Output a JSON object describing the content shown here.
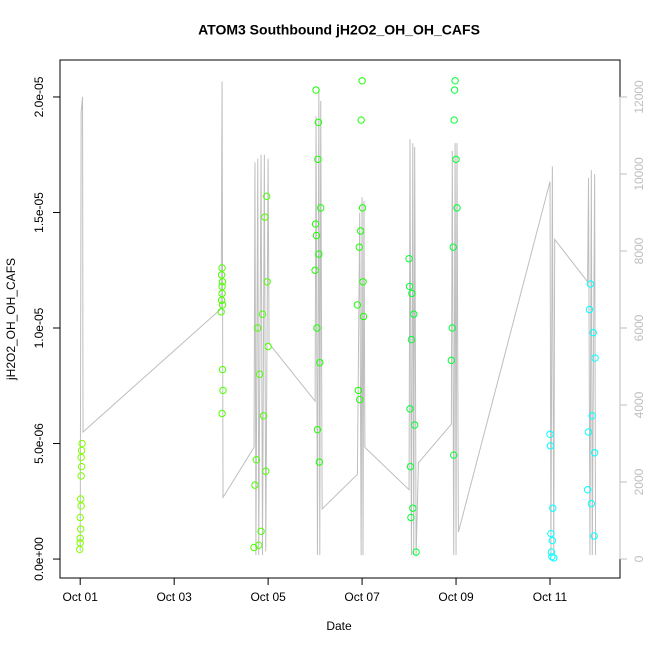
{
  "chart_data": {
    "type": "scatter",
    "title": "ATOM3 Southbound jH2O2_OH_OH_CAFS",
    "x_label": "Date",
    "y_label": "jH2O2_OH_OH_CAFS",
    "xlim": [
      0.57,
      12.49
    ],
    "xticks": [
      {
        "value": 1,
        "label": "Oct 01"
      },
      {
        "value": 3,
        "label": "Oct 03"
      },
      {
        "value": 5,
        "label": "Oct 05"
      },
      {
        "value": 7,
        "label": "Oct 07"
      },
      {
        "value": 9,
        "label": "Oct 09"
      },
      {
        "value": 11,
        "label": "Oct 11"
      }
    ],
    "ylim": [
      -8.2e-07,
      2.16e-05
    ],
    "yticks": [
      {
        "value": 0,
        "label": "0.0e+00"
      },
      {
        "value": 5e-06,
        "label": "5.0e-06"
      },
      {
        "value": 1e-05,
        "label": "1.0e-05"
      },
      {
        "value": 1.5e-05,
        "label": "1.5e-05"
      },
      {
        "value": 2e-05,
        "label": "2.0e-05"
      }
    ],
    "y2lim": [
      -493,
      12960
    ],
    "y2ticks": [
      0,
      2000,
      4000,
      6000,
      8000,
      10000,
      12000
    ],
    "y2_color": "#bebebe",
    "series": [
      {
        "color": "#80ff00",
        "x": [
          0.99,
          1.0,
          1.0,
          1.01,
          1.0,
          1.02,
          1.01,
          1.02,
          1.03,
          1.02,
          1.03,
          1.04
        ],
        "values": [
          4.2e-07,
          7e-07,
          9e-07,
          1.3e-06,
          1.8e-06,
          2.3e-06,
          2.6e-06,
          3.6e-06,
          4e-06,
          4.4e-06,
          4.7e-06,
          5e-06
        ]
      },
      {
        "color": "#4dff00",
        "x": [
          4.0,
          4.01,
          4.02,
          4.02,
          4.03,
          4.01,
          4.02,
          4.03,
          4.04,
          4.02,
          4.03,
          4.7,
          4.72,
          4.75,
          4.78,
          4.8,
          4.82,
          4.85,
          4.88,
          4.9,
          4.93,
          4.95,
          4.97,
          4.98,
          5.0
        ],
        "values": [
          1.07e-05,
          1.12e-05,
          1.15e-05,
          1.18e-05,
          1.2e-05,
          1.23e-05,
          1.26e-05,
          8.2e-06,
          7.3e-06,
          6.3e-06,
          1.1e-05,
          5e-07,
          3.2e-06,
          4.3e-06,
          1e-05,
          6e-07,
          8e-06,
          1.2e-06,
          1.06e-05,
          6.2e-06,
          1.48e-05,
          3.8e-06,
          1.57e-05,
          1.2e-05,
          9.2e-06
        ]
      },
      {
        "color": "#1aff00",
        "x": [
          6.0,
          6.01,
          6.02,
          6.03,
          6.04,
          6.05,
          6.06,
          6.07,
          6.08,
          6.09,
          6.1,
          6.12,
          6.9,
          6.92,
          6.94,
          6.95,
          6.97,
          6.98,
          7.0,
          7.01,
          7.02,
          7.03
        ],
        "values": [
          1.25e-05,
          1.45e-05,
          2.03e-05,
          1.4e-05,
          1e-05,
          5.6e-06,
          1.73e-05,
          1.89e-05,
          1.32e-05,
          4.2e-06,
          8.5e-06,
          1.52e-05,
          1.1e-05,
          7.3e-06,
          1.35e-05,
          6.9e-06,
          1.42e-05,
          1.9e-05,
          2.07e-05,
          1.52e-05,
          1.2e-05,
          1.05e-05
        ]
      },
      {
        "color": "#00ff33",
        "x": [
          8.0,
          8.01,
          8.02,
          8.03,
          8.04,
          8.05,
          8.06,
          8.08,
          8.1,
          8.12,
          8.15,
          8.9,
          8.92,
          8.94,
          8.95,
          8.96,
          8.97,
          8.98,
          9.0,
          9.02
        ],
        "values": [
          1.3e-05,
          1.18e-05,
          6.5e-06,
          4e-06,
          1.8e-06,
          9.5e-06,
          1.15e-05,
          2.2e-06,
          1.06e-05,
          5.8e-06,
          3e-07,
          8.6e-06,
          1e-05,
          1.35e-05,
          4.5e-06,
          1.9e-05,
          2.03e-05,
          2.07e-05,
          1.73e-05,
          1.52e-05
        ]
      },
      {
        "color": "#00ffff",
        "x": [
          11.0,
          11.01,
          11.02,
          11.03,
          11.04,
          11.05,
          11.06,
          11.08,
          11.8,
          11.82,
          11.84,
          11.86,
          11.88,
          11.9,
          11.92,
          11.94,
          11.95,
          11.96
        ],
        "values": [
          5.4e-06,
          4.9e-06,
          1.1e-06,
          3e-07,
          1e-07,
          8e-07,
          2.2e-06,
          5e-08,
          3e-06,
          5.5e-06,
          1.08e-05,
          1.19e-05,
          2.4e-06,
          6.2e-06,
          9.8e-06,
          1e-06,
          4.6e-06,
          8.7e-06
        ]
      },
      {
        "type": "line",
        "axis": "y2",
        "color": "#bebebe",
        "x": [
          1.0,
          1.02,
          1.05,
          1.06,
          4.0,
          4.02,
          4.04,
          4.7,
          4.72,
          4.74,
          4.78,
          4.8,
          4.85,
          4.88,
          4.92,
          4.95,
          5.0,
          5.02,
          6.0,
          6.02,
          6.05,
          6.08,
          6.1,
          6.12,
          6.15,
          6.9,
          6.95,
          6.98,
          7.0,
          7.02,
          7.04,
          7.06,
          8.0,
          8.02,
          8.05,
          8.08,
          8.1,
          8.12,
          8.15,
          8.2,
          8.9,
          8.92,
          8.95,
          8.98,
          9.0,
          9.02,
          9.05,
          11.0,
          11.02,
          11.05,
          11.08,
          11.1,
          11.8,
          11.82,
          11.85,
          11.88,
          11.9,
          11.95,
          11.97
        ],
        "values": [
          200,
          11600,
          12000,
          3300,
          6500,
          12400,
          1600,
          2900,
          10300,
          100,
          10400,
          100,
          10500,
          100,
          10500,
          200,
          10400,
          5600,
          4100,
          11500,
          100,
          12200,
          100,
          11900,
          1300,
          2200,
          9000,
          100,
          9400,
          100,
          9300,
          2900,
          1800,
          10900,
          100,
          10800,
          100,
          10700,
          100,
          2500,
          3500,
          10600,
          100,
          10800,
          100,
          10800,
          700,
          9800,
          100,
          10200,
          100,
          8300,
          7200,
          9900,
          100,
          10100,
          100,
          10000,
          100
        ]
      }
    ]
  }
}
